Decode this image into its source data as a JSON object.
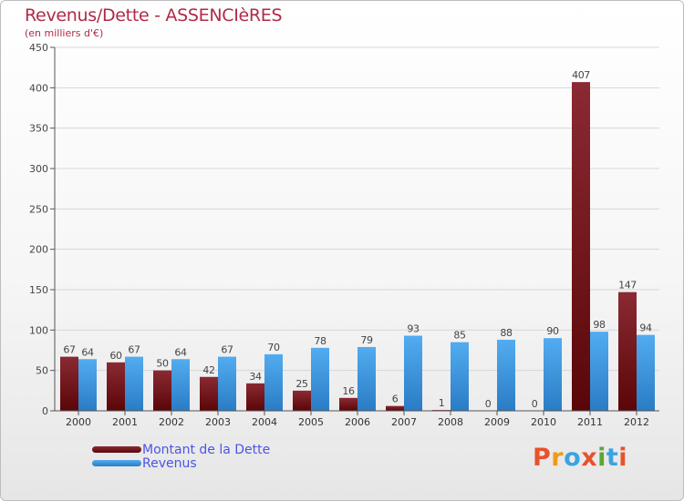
{
  "header": {
    "title": "Revenus/Dette - ASSENCIèRES",
    "subtitle": "(en milliers d'€)"
  },
  "legend": {
    "items": [
      {
        "label": "Montant de la Dette",
        "color": "#6b0f14"
      },
      {
        "label": "Revenus",
        "color": "#3a94de"
      }
    ]
  },
  "logo": {
    "text": "Proxiti",
    "letter_colors": [
      "#e8522c",
      "#f09a1a",
      "#3ba3e0",
      "#e8522c",
      "#5aa832",
      "#3ba3e0",
      "#e8522c"
    ]
  },
  "chart_data": {
    "type": "bar",
    "categories": [
      "2000",
      "2001",
      "2002",
      "2003",
      "2004",
      "2005",
      "2006",
      "2007",
      "2008",
      "2009",
      "2010",
      "2011",
      "2012"
    ],
    "series": [
      {
        "name": "Montant de la Dette",
        "color": "#7e1a22",
        "values": [
          67,
          60,
          50,
          42,
          34,
          25,
          16,
          6,
          1,
          0,
          0,
          407,
          147
        ]
      },
      {
        "name": "Revenus",
        "color": "#3b9be0",
        "values": [
          64,
          67,
          64,
          67,
          70,
          78,
          79,
          93,
          85,
          88,
          90,
          98,
          94
        ]
      }
    ],
    "ylim": [
      0,
      450
    ],
    "yticks": [
      0,
      50,
      100,
      150,
      200,
      250,
      300,
      350,
      400,
      450
    ],
    "grid": true,
    "legend_position": "bottom-left"
  }
}
